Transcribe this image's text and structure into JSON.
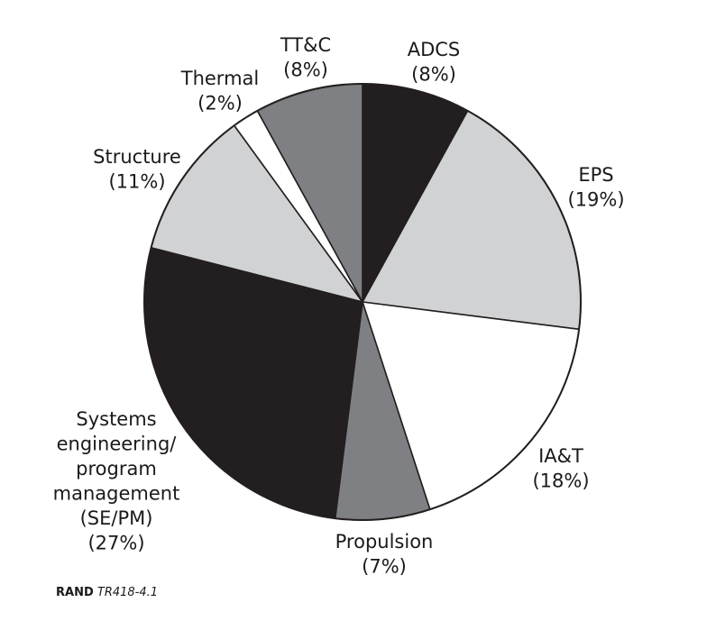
{
  "chart_data": {
    "type": "pie",
    "title": "",
    "slices": [
      {
        "label": "ADCS",
        "pct_label": "(8%)",
        "value": 8,
        "color": "#231f20"
      },
      {
        "label": "EPS",
        "pct_label": "(19%)",
        "value": 19,
        "color": "#d1d2d4"
      },
      {
        "label": "IA&T",
        "pct_label": "(18%)",
        "value": 18,
        "color": "#ffffff"
      },
      {
        "label": "Propulsion",
        "pct_label": "(7%)",
        "value": 7,
        "color": "#7f8083"
      },
      {
        "label": "Systems engineering/ program management (SE/PM)",
        "label_lines": [
          "Systems",
          "engineering/",
          "program",
          "management",
          "(SE/PM)"
        ],
        "pct_label": "(27%)",
        "value": 27,
        "color": "#231f20"
      },
      {
        "label": "Structure",
        "pct_label": "(11%)",
        "value": 11,
        "color": "#d1d2d4"
      },
      {
        "label": "Thermal",
        "pct_label": "(2%)",
        "value": 2,
        "color": "#ffffff"
      },
      {
        "label": "TT&C",
        "pct_label": "(8%)",
        "value": 8,
        "color": "#7f8083"
      }
    ],
    "start": "12 o'clock",
    "direction": "clockwise"
  },
  "credit": {
    "org": "RAND",
    "id": "TR418-4.1"
  }
}
